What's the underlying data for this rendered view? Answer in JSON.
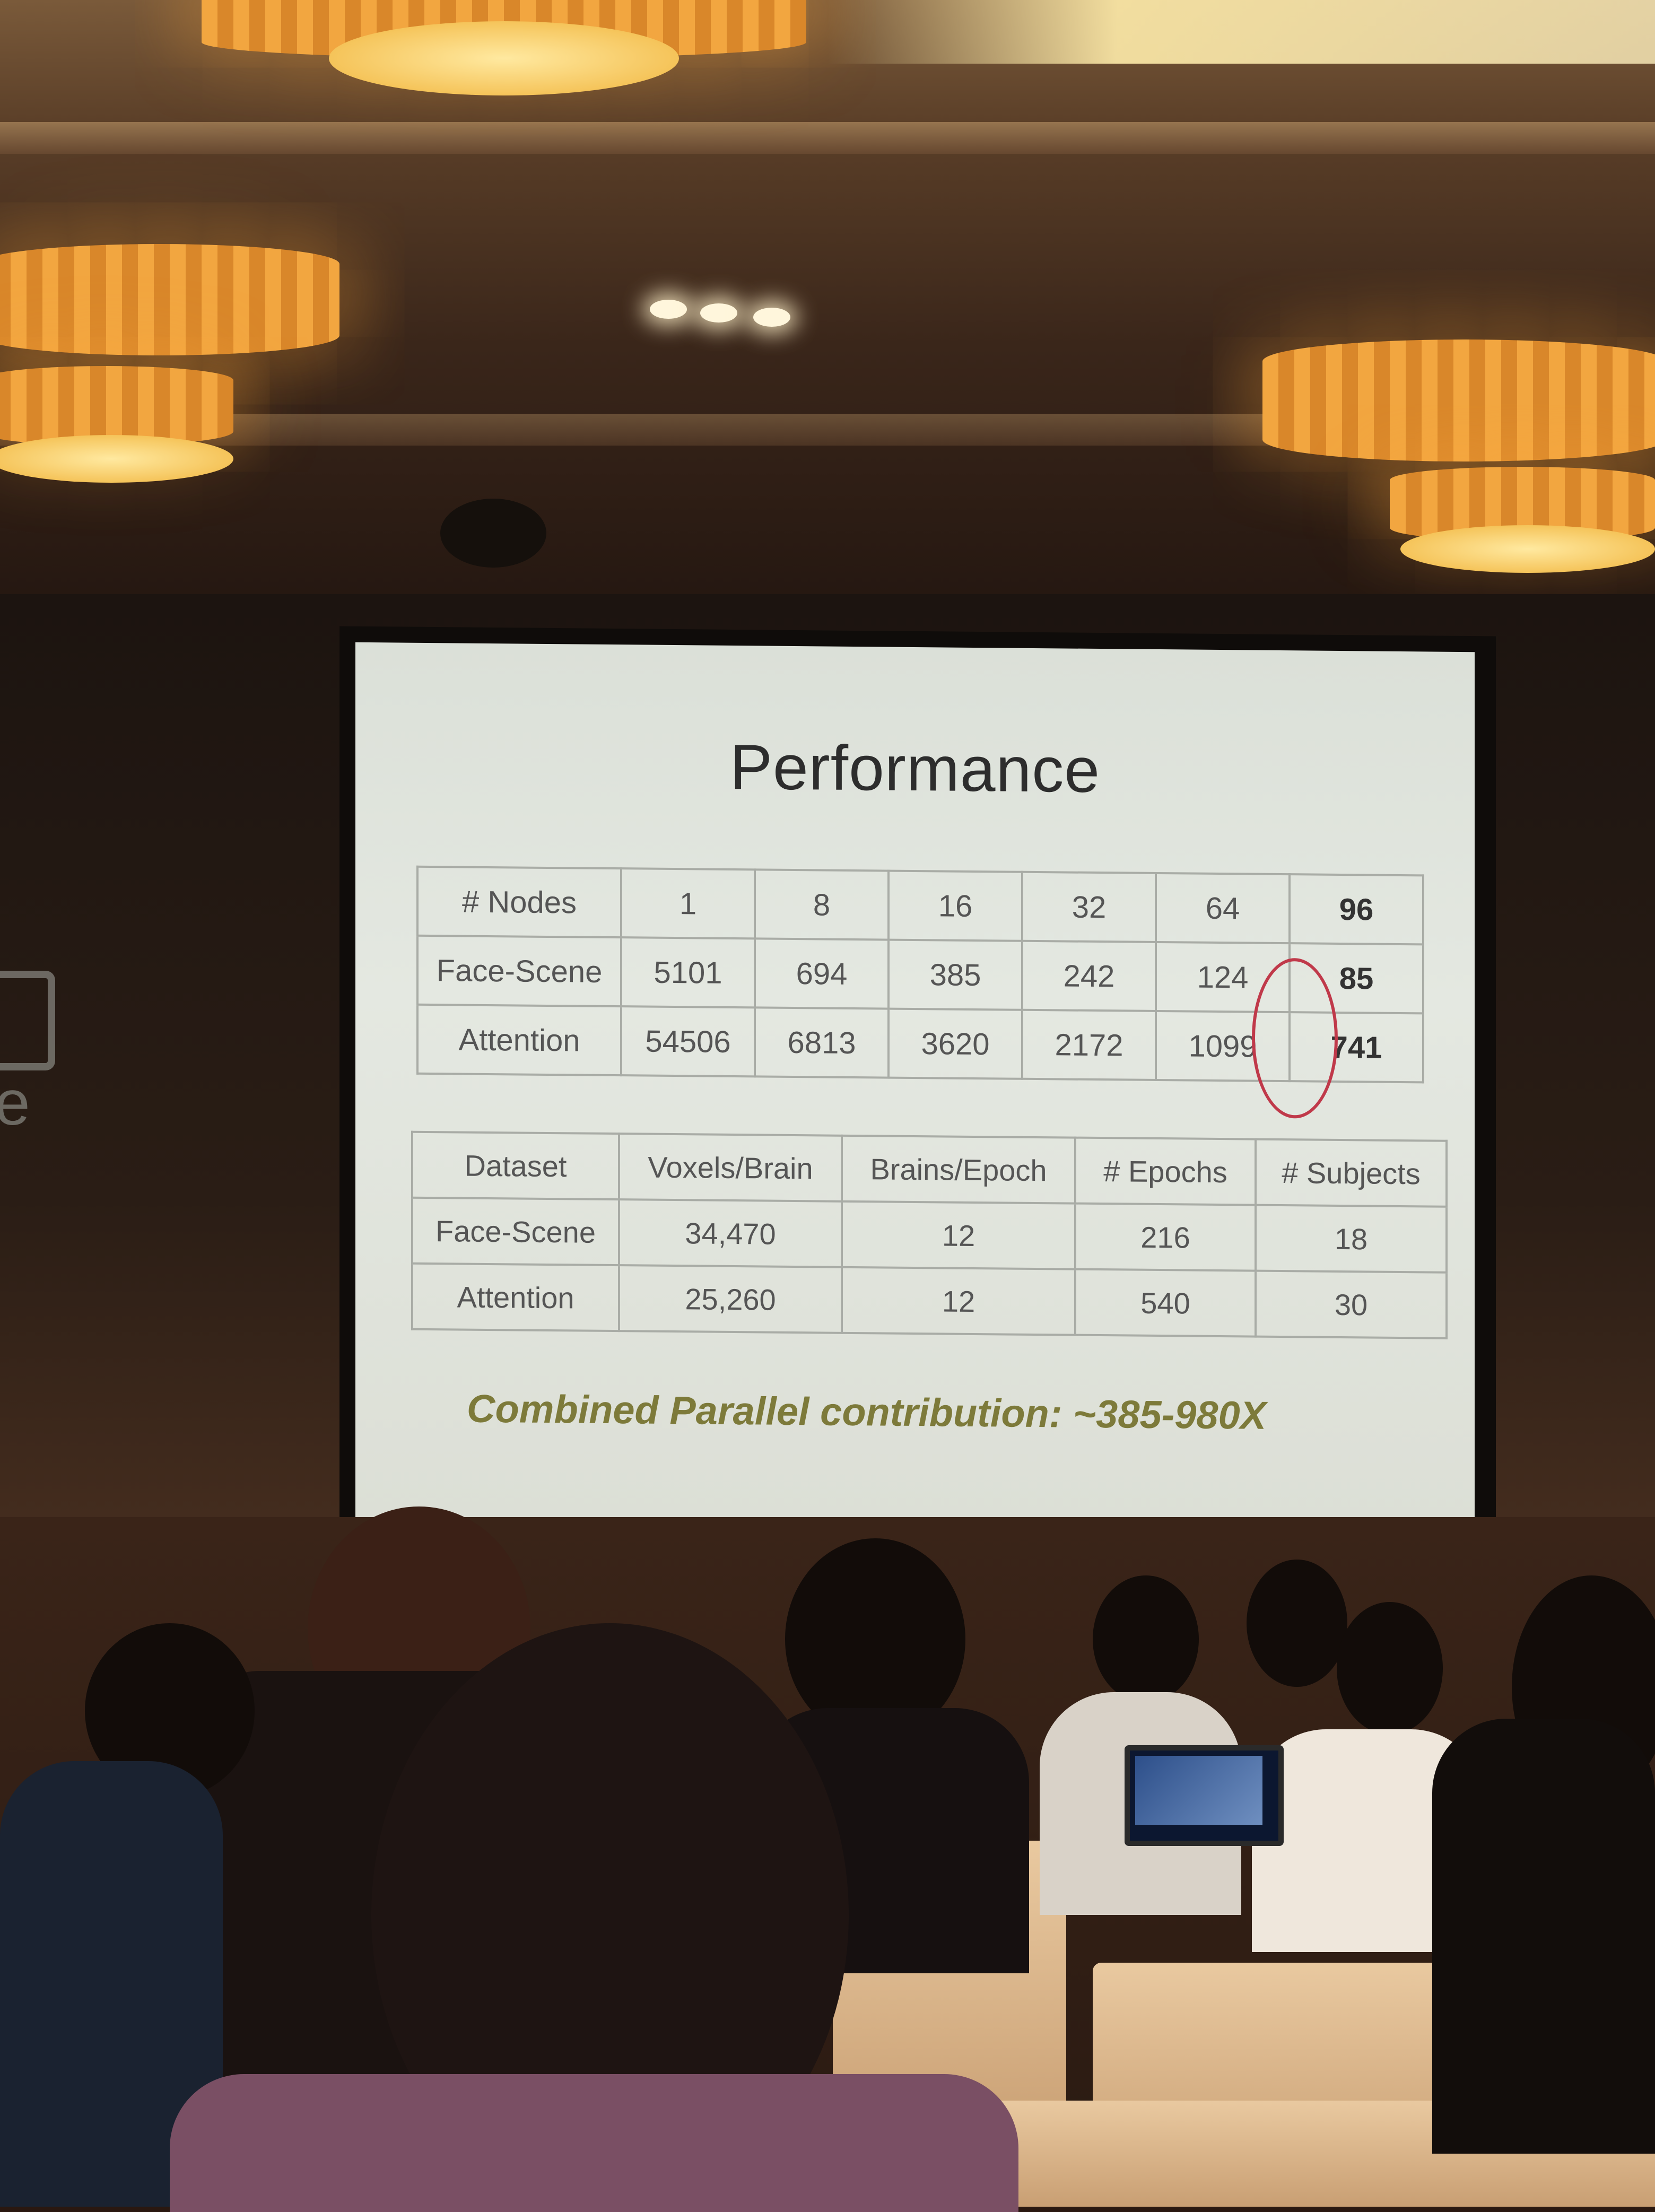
{
  "slide": {
    "title": "Performance",
    "performance_table": {
      "headers": [
        "# Nodes",
        "1",
        "8",
        "16",
        "32",
        "64",
        "96"
      ],
      "rows": [
        [
          "Face-Scene",
          "5101",
          "694",
          "385",
          "242",
          "124",
          "85"
        ],
        [
          "Attention",
          "54506",
          "6813",
          "3620",
          "2172",
          "1099",
          "741"
        ]
      ]
    },
    "dataset_table": {
      "headers": [
        "Dataset",
        "Voxels/Brain",
        "Brains/Epoch",
        "# Epochs",
        "# Subjects"
      ],
      "rows": [
        [
          "Face-Scene",
          "34,470",
          "12",
          "216",
          "18"
        ],
        [
          "Attention",
          "25,260",
          "12",
          "540",
          "30"
        ]
      ]
    },
    "contribution": "Combined Parallel contribution: ~385-980X"
  },
  "side_sign_letter": "e",
  "colors": {
    "circle": "#c0394a",
    "contribution": "#7d7a3a",
    "lamp": "#f2a640"
  }
}
